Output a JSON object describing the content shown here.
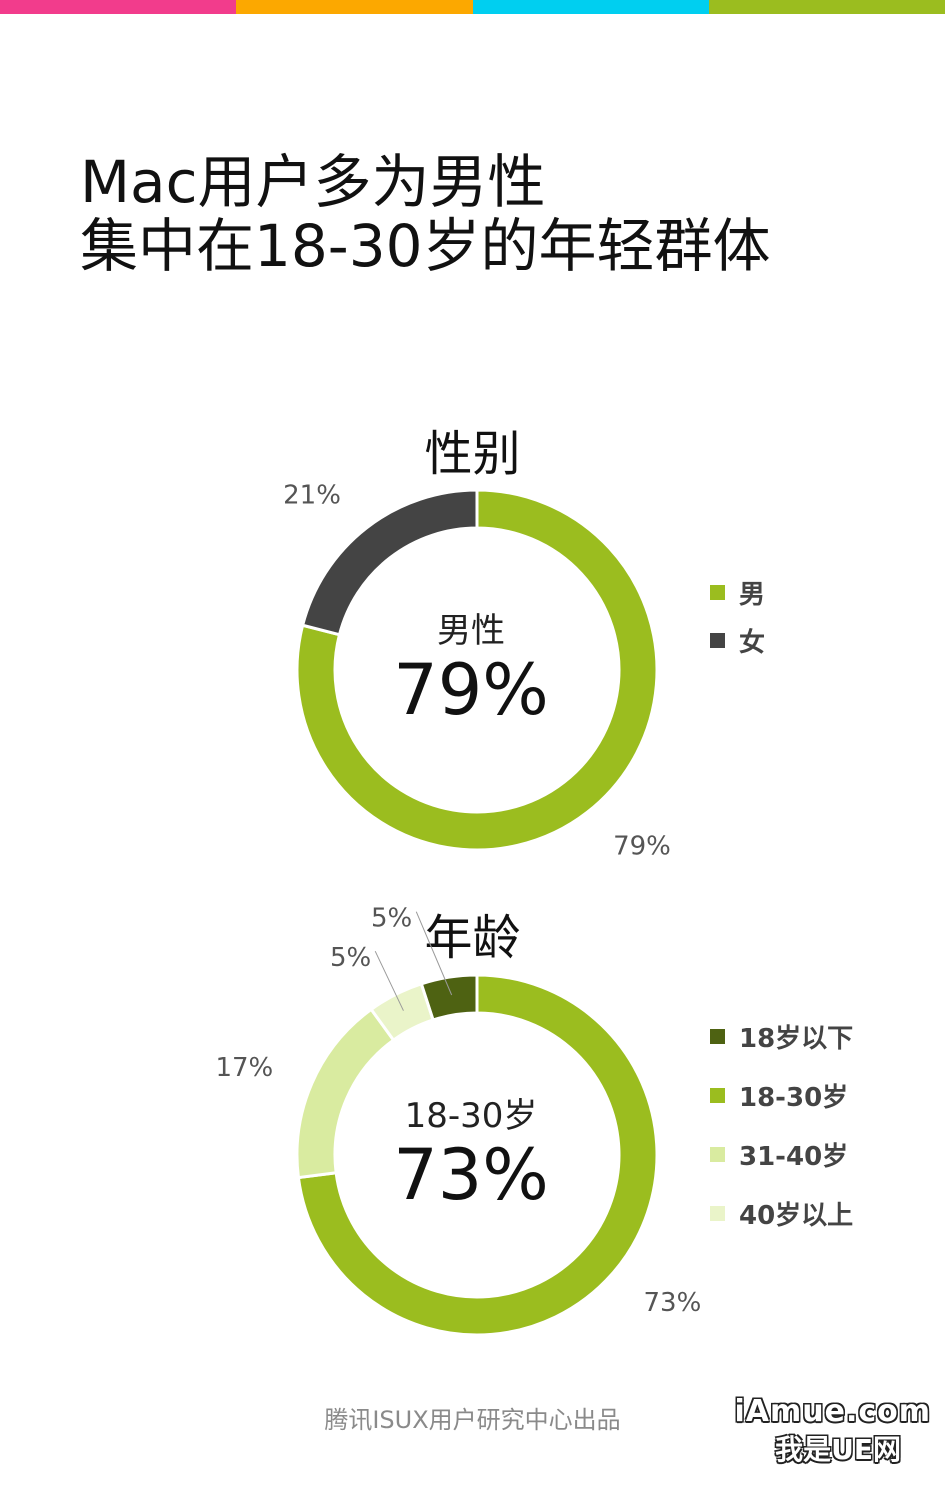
{
  "top_bar_colors": [
    "#f23c8c",
    "#fca800",
    "#00cff0",
    "#9bbd1f"
  ],
  "title": {
    "line1": "Mac用户多为男性",
    "line2": "集中在18-30岁的年轻群体"
  },
  "chart_data": [
    {
      "type": "pie",
      "donut": true,
      "title": "性别",
      "center_label": "男性",
      "center_value": "79%",
      "legend_position": "right",
      "slices": [
        {
          "name": "男",
          "value": 79,
          "label": "79%",
          "color": "#9bbd1f"
        },
        {
          "name": "女",
          "value": 21,
          "label": "21%",
          "color": "#444444"
        }
      ]
    },
    {
      "type": "pie",
      "donut": true,
      "title": "年龄",
      "center_label": "18-30岁",
      "center_value": "73%",
      "legend_position": "right",
      "slices": [
        {
          "name": "18岁以下",
          "value": 5,
          "label": "5%",
          "color": "#4e6212"
        },
        {
          "name": "18-30岁",
          "value": 73,
          "label": "73%",
          "color": "#9bbd1f"
        },
        {
          "name": "31-40岁",
          "value": 17,
          "label": "17%",
          "color": "#d9eba0"
        },
        {
          "name": "40岁以上",
          "value": 5,
          "label": "5%",
          "color": "#eaf4c9"
        }
      ]
    }
  ],
  "footer": "腾讯ISUX用户研究中心出品",
  "watermark": {
    "line1": "iAmue.com",
    "line2": "我是UE网"
  }
}
